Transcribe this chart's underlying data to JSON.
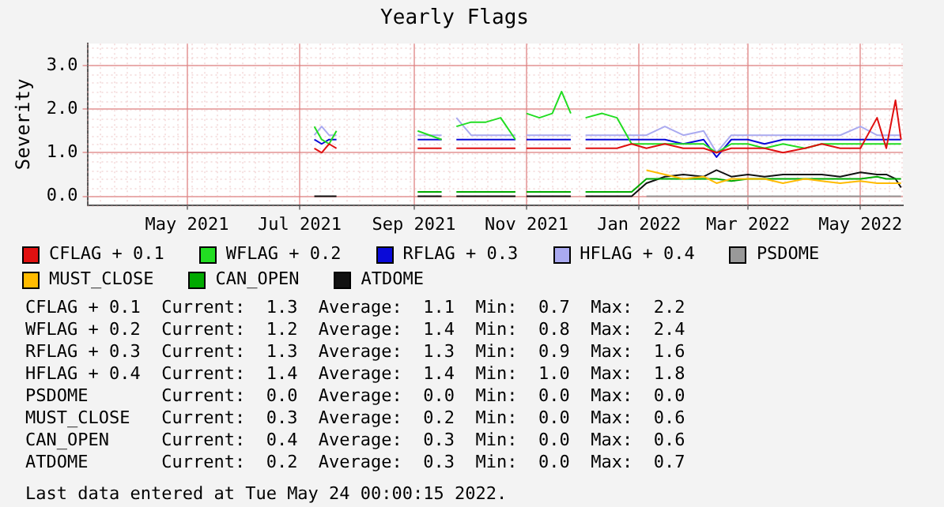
{
  "chart_data": {
    "type": "line",
    "title": "Yearly Flags",
    "ylabel": "Severity",
    "x": [
      "2021-07-09",
      "2021-07-13",
      "2021-07-17",
      "2021-07-21",
      "2021-07-25",
      "2021-09-03",
      "2021-09-16",
      "2021-09-19",
      "2021-09-24",
      "2021-10-02",
      "2021-10-10",
      "2021-10-18",
      "2021-10-26",
      "2021-10-29",
      "2021-11-01",
      "2021-11-08",
      "2021-11-15",
      "2021-11-20",
      "2021-11-25",
      "2021-11-29",
      "2021-12-03",
      "2021-12-12",
      "2021-12-20",
      "2021-12-28",
      "2022-01-05",
      "2022-01-15",
      "2022-01-25",
      "2022-02-05",
      "2022-02-12",
      "2022-02-20",
      "2022-03-01",
      "2022-03-10",
      "2022-03-20",
      "2022-04-01",
      "2022-04-10",
      "2022-04-20",
      "2022-05-01",
      "2022-05-10",
      "2022-05-15",
      "2022-05-20",
      "2022-05-23"
    ],
    "series": [
      {
        "name": "CFLAG + 0.1",
        "color": "#e01010",
        "values": [
          1.1,
          1.0,
          1.2,
          1.1,
          null,
          1.1,
          1.1,
          null,
          1.1,
          1.1,
          1.1,
          1.1,
          1.1,
          null,
          1.1,
          1.1,
          1.1,
          1.1,
          1.1,
          null,
          1.1,
          1.1,
          1.1,
          1.2,
          1.1,
          1.2,
          1.1,
          1.1,
          1.0,
          1.1,
          1.1,
          1.1,
          1.0,
          1.1,
          1.2,
          1.1,
          1.1,
          1.8,
          1.1,
          2.2,
          1.3
        ]
      },
      {
        "name": "WFLAG + 0.2",
        "color": "#22dd22",
        "values": [
          1.6,
          1.3,
          1.2,
          1.5,
          null,
          1.5,
          1.3,
          null,
          1.6,
          1.7,
          1.7,
          1.8,
          1.3,
          null,
          1.9,
          1.8,
          1.9,
          2.4,
          1.9,
          null,
          1.8,
          1.9,
          1.8,
          1.2,
          1.2,
          1.2,
          1.2,
          1.2,
          1.0,
          1.2,
          1.2,
          1.1,
          1.2,
          1.1,
          1.2,
          1.2,
          1.2,
          1.2,
          1.2,
          1.2,
          1.2
        ]
      },
      {
        "name": "RFLAG + 0.3",
        "color": "#0a0ad8",
        "values": [
          1.3,
          1.2,
          1.3,
          1.3,
          null,
          1.3,
          1.3,
          null,
          1.3,
          1.3,
          1.3,
          1.3,
          1.3,
          null,
          1.3,
          1.3,
          1.3,
          1.3,
          1.3,
          null,
          1.3,
          1.3,
          1.3,
          1.3,
          1.3,
          1.3,
          1.2,
          1.3,
          0.9,
          1.3,
          1.3,
          1.2,
          1.3,
          1.3,
          1.3,
          1.3,
          1.3,
          1.3,
          1.3,
          1.3,
          1.3
        ]
      },
      {
        "name": "HFLAG + 0.4",
        "color": "#aaaaf0",
        "values": [
          1.4,
          1.6,
          1.4,
          1.4,
          null,
          1.4,
          1.4,
          null,
          1.8,
          1.4,
          1.4,
          1.4,
          1.4,
          null,
          1.4,
          1.4,
          1.4,
          1.4,
          1.4,
          null,
          1.4,
          1.4,
          1.4,
          1.4,
          1.4,
          1.6,
          1.4,
          1.5,
          1.0,
          1.4,
          1.4,
          1.4,
          1.4,
          1.4,
          1.4,
          1.4,
          1.6,
          1.4,
          1.4,
          1.4,
          1.4
        ]
      },
      {
        "name": "PSDOME",
        "color": "#999999",
        "values": [
          null,
          null,
          null,
          null,
          null,
          null,
          null,
          null,
          null,
          null,
          null,
          null,
          null,
          null,
          null,
          null,
          null,
          null,
          null,
          null,
          null,
          null,
          null,
          null,
          0.0,
          0.0,
          0.0,
          0.0,
          0.0,
          0.0,
          0.0,
          0.0,
          0.0,
          0.0,
          0.0,
          0.0,
          0.0,
          0.0,
          0.0,
          0.0,
          0.0
        ]
      },
      {
        "name": "MUST_CLOSE",
        "color": "#ffbb00",
        "values": [
          null,
          null,
          null,
          null,
          null,
          null,
          null,
          null,
          null,
          null,
          null,
          null,
          null,
          null,
          null,
          null,
          null,
          null,
          null,
          null,
          null,
          null,
          null,
          null,
          0.6,
          0.5,
          0.4,
          0.45,
          0.3,
          0.4,
          0.4,
          0.4,
          0.3,
          0.4,
          0.35,
          0.3,
          0.35,
          0.3,
          0.3,
          0.3,
          0.3
        ]
      },
      {
        "name": "CAN_OPEN",
        "color": "#00aa00",
        "values": [
          null,
          null,
          null,
          null,
          null,
          0.1,
          0.1,
          null,
          0.1,
          0.1,
          0.1,
          0.1,
          0.1,
          null,
          0.1,
          0.1,
          0.1,
          0.1,
          0.1,
          null,
          0.1,
          0.1,
          0.1,
          0.1,
          0.4,
          0.4,
          0.4,
          0.4,
          0.4,
          0.35,
          0.4,
          0.4,
          0.4,
          0.4,
          0.4,
          0.4,
          0.4,
          0.45,
          0.4,
          0.4,
          0.4
        ]
      },
      {
        "name": "ATDOME",
        "color": "#111111",
        "values": [
          0.0,
          0.0,
          0.0,
          0.0,
          null,
          0.0,
          0.0,
          null,
          0.0,
          0.0,
          0.0,
          0.0,
          0.0,
          null,
          0.0,
          0.0,
          0.0,
          0.0,
          0.0,
          null,
          0.0,
          0.0,
          0.0,
          0.0,
          0.3,
          0.45,
          0.5,
          0.45,
          0.6,
          0.45,
          0.5,
          0.45,
          0.5,
          0.5,
          0.5,
          0.45,
          0.55,
          0.5,
          0.5,
          0.4,
          0.2
        ]
      }
    ],
    "xlim": [
      "2021-03-08",
      "2022-05-24"
    ],
    "xticks": [
      {
        "value": "2021-05-01",
        "label": "May 2021"
      },
      {
        "value": "2021-07-01",
        "label": "Jul 2021"
      },
      {
        "value": "2021-09-01",
        "label": "Sep 2021"
      },
      {
        "value": "2021-11-01",
        "label": "Nov 2021"
      },
      {
        "value": "2022-01-01",
        "label": "Jan 2022"
      },
      {
        "value": "2022-03-01",
        "label": "Mar 2022"
      },
      {
        "value": "2022-05-01",
        "label": "May 2022"
      }
    ],
    "ylim": [
      -0.2,
      3.5
    ],
    "yticks": [
      {
        "value": 0,
        "label": "0.0"
      },
      {
        "value": 1,
        "label": "1.0"
      },
      {
        "value": 2,
        "label": "2.0"
      },
      {
        "value": 3,
        "label": "3.0"
      }
    ],
    "grid": true,
    "legend": "bottom",
    "marker": "none",
    "line_style": "solid",
    "annotations": [
      "CFLAG + 0.1  Current:  1.3  Average:  1.1  Min:  0.7  Max:  2.2",
      "WFLAG + 0.2  Current:  1.2  Average:  1.4  Min:  0.8  Max:  2.4",
      "RFLAG + 0.3  Current:  1.3  Average:  1.3  Min:  0.9  Max:  1.6",
      "HFLAG + 0.4  Current:  1.4  Average:  1.4  Min:  1.0  Max:  1.8",
      "PSDOME       Current:  0.0  Average:  0.0  Min:  0.0  Max:  0.0",
      "MUST_CLOSE   Current:  0.3  Average:  0.2  Min:  0.0  Max:  0.6",
      "CAN_OPEN     Current:  0.4  Average:  0.3  Min:  0.0  Max:  0.6",
      "ATDOME       Current:  0.2  Average:  0.3  Min:  0.0  Max:  0.7",
      "Last data entered at Tue May 24 00:00:15 2022."
    ]
  }
}
